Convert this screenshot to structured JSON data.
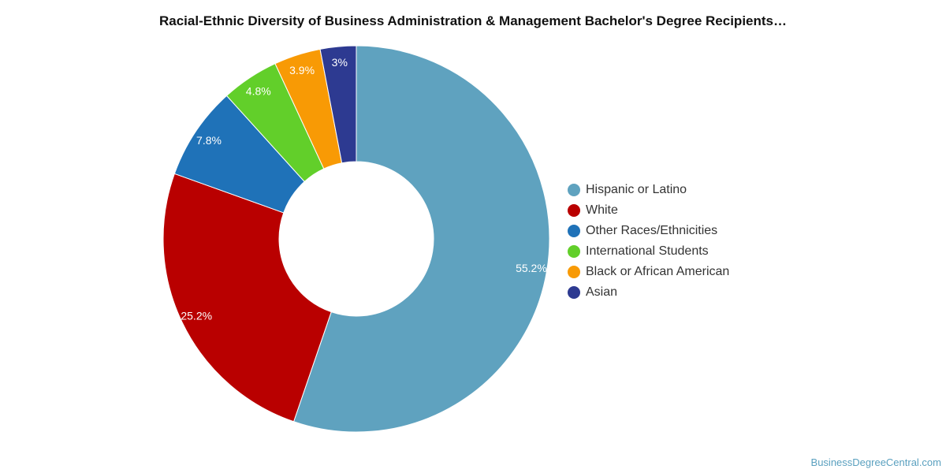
{
  "chart_data": {
    "type": "pie",
    "title": "Racial-Ethnic Diversity of Business Administration & Management Bachelor's Degree Recipients…",
    "categories": [
      "Hispanic or Latino",
      "White",
      "Other Races/Ethnicities",
      "International Students",
      "Black or African American",
      "Asian"
    ],
    "values": [
      55.2,
      25.2,
      7.8,
      4.8,
      3.9,
      3.0
    ],
    "value_labels": [
      "55.2%",
      "25.2%",
      "7.8%",
      "4.8%",
      "3.9%",
      "3%"
    ],
    "colors": [
      "#5fa2bf",
      "#b90000",
      "#1f72b8",
      "#62cf2a",
      "#f89a05",
      "#2d3a91"
    ],
    "donut": true,
    "legend_position": "right"
  },
  "source": "BusinessDegreeCentral.com"
}
